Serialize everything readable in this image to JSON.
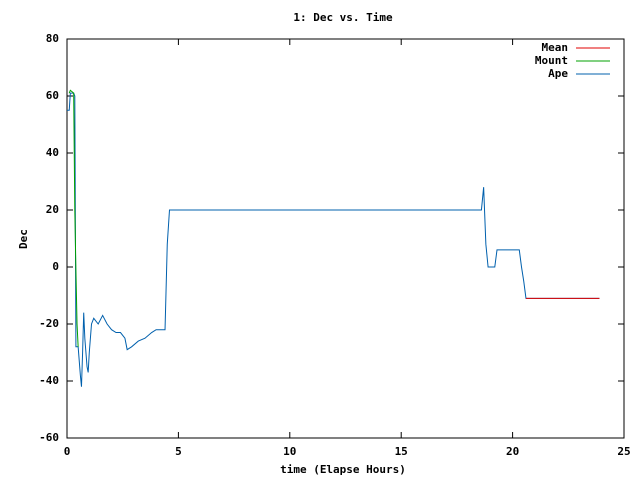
{
  "chart_data": {
    "type": "line",
    "title": "1: Dec vs. Time",
    "xlabel": "time (Elapse Hours)",
    "ylabel": "Dec",
    "xlim": [
      0,
      25
    ],
    "xticks": [
      0,
      5,
      10,
      15,
      20,
      25
    ],
    "ylim": [
      -60,
      80
    ],
    "yticks": [
      -60,
      -40,
      -20,
      0,
      20,
      40,
      60,
      80
    ],
    "grid": false,
    "legend": "top-right",
    "series": [
      {
        "name": "Mean",
        "color": "#e00000",
        "x": [
          20.6,
          23.9
        ],
        "values": [
          -11,
          -11
        ]
      },
      {
        "name": "Mount",
        "color": "#00a000",
        "x": [
          0.1,
          0.15,
          0.3,
          0.35,
          0.4,
          0.45,
          0.5
        ],
        "values": [
          61,
          62,
          61,
          20,
          -1,
          -20,
          -28
        ]
      },
      {
        "name": "Ape",
        "color": "#0060ad",
        "x": [
          0,
          0.1,
          0.15,
          0.3,
          0.35,
          0.4,
          0.5,
          0.6,
          0.65,
          0.7,
          0.75,
          0.8,
          0.9,
          0.95,
          1.0,
          1.1,
          1.2,
          1.4,
          1.6,
          1.8,
          2.0,
          2.2,
          2.4,
          2.6,
          2.7,
          2.9,
          3.2,
          3.5,
          3.8,
          4.0,
          4.4,
          4.5,
          4.6,
          18.6,
          18.7,
          18.75,
          18.8,
          18.9,
          19.2,
          19.3,
          20.3,
          20.4,
          20.5,
          20.6,
          23.9
        ],
        "values": [
          55,
          55,
          61,
          61,
          60,
          -28,
          -28,
          -38,
          -42,
          -30,
          -16,
          -25,
          -35,
          -37,
          -30,
          -20,
          -18,
          -20,
          -17,
          -20,
          -22,
          -23,
          -23,
          -25,
          -29,
          -28,
          -26,
          -25,
          -23,
          -22,
          -22,
          8,
          20,
          20,
          28,
          18,
          8,
          0,
          0,
          6,
          6,
          0,
          -5,
          -11,
          -11
        ]
      }
    ]
  }
}
